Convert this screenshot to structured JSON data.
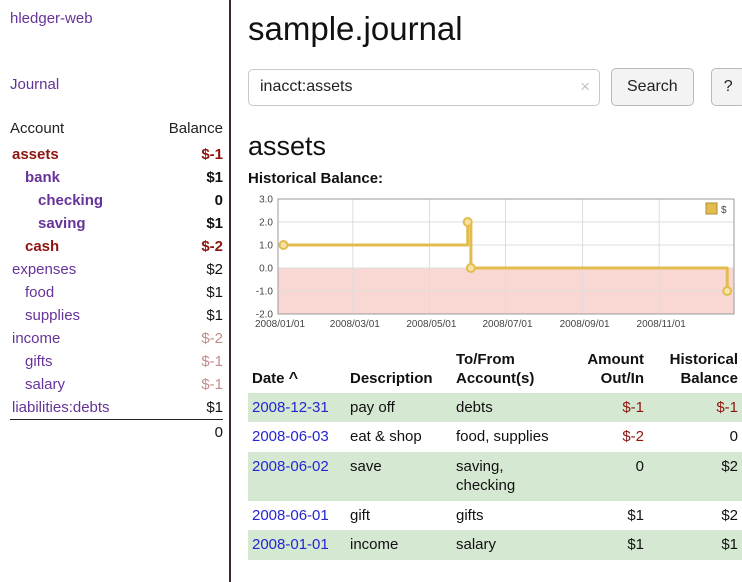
{
  "sidebar": {
    "app_title": "hledger-web",
    "journal_link": "Journal",
    "table": {
      "account_header": "Account",
      "balance_header": "Balance",
      "accounts": [
        {
          "name": "assets",
          "balance": "$-1"
        },
        {
          "name": "bank",
          "balance": "$1"
        },
        {
          "name": "checking",
          "balance": "0"
        },
        {
          "name": "saving",
          "balance": "$1"
        },
        {
          "name": "cash",
          "balance": "$-2"
        },
        {
          "name": "expenses",
          "balance": "$2"
        },
        {
          "name": "food",
          "balance": "$1"
        },
        {
          "name": "supplies",
          "balance": "$1"
        },
        {
          "name": "income",
          "balance": "$-2"
        },
        {
          "name": "gifts",
          "balance": "$-1"
        },
        {
          "name": "salary",
          "balance": "$-1"
        },
        {
          "name": "liabilities:debts",
          "balance": "$1"
        }
      ],
      "total": "0"
    }
  },
  "header": {
    "title": "sample.journal"
  },
  "search": {
    "value": "inacct:assets",
    "clear_icon": "×",
    "button_label": "Search",
    "help_label": "?"
  },
  "section": {
    "title": "assets",
    "chart_label": "Historical Balance:"
  },
  "chart_data": {
    "type": "step-line",
    "title": "Historical Balance:",
    "legend_label": "$",
    "ylim": [
      -2,
      3
    ],
    "yticks": [
      3.0,
      2.0,
      1.0,
      0.0,
      -1.0,
      -2.0
    ],
    "xticks": [
      {
        "label": "2008/01/01",
        "pos": 0.0
      },
      {
        "label": "2008/03/01",
        "pos": 0.164
      },
      {
        "label": "2008/05/01",
        "pos": 0.332
      },
      {
        "label": "2008/07/01",
        "pos": 0.499
      },
      {
        "label": "2008/09/01",
        "pos": 0.668
      },
      {
        "label": "2008/11/01",
        "pos": 0.836
      }
    ],
    "data": [
      [
        "2008-01-01",
        1
      ],
      [
        "2008-06-01",
        2
      ],
      [
        "2008-06-02",
        2
      ],
      [
        "2008-06-03",
        0
      ],
      [
        "2008-12-31",
        -1
      ]
    ],
    "points": [
      {
        "x": 0.012,
        "y": 1
      },
      {
        "x": 0.416,
        "y": 1
      },
      {
        "x": 0.416,
        "y": 2
      },
      {
        "x": 0.423,
        "y": 2
      },
      {
        "x": 0.423,
        "y": 0
      },
      {
        "x": 0.985,
        "y": 0
      },
      {
        "x": 0.985,
        "y": -1
      }
    ],
    "markers": [
      [
        0.012,
        1
      ],
      [
        0.416,
        2
      ],
      [
        0.423,
        0
      ],
      [
        0.985,
        -1
      ]
    ],
    "line_color": "#e2bc4e",
    "marker_fill": "#f6e3a4",
    "negative_region_color": "#f9d8d4",
    "grid_color": "#dddddd"
  },
  "transactions": {
    "sort_icon": "^",
    "headers": {
      "date": "Date",
      "description": "Description",
      "accounts": "To/From Account(s)",
      "amount": "Amount Out/In",
      "balance": "Historical Balance"
    },
    "rows": [
      {
        "date": "2008-12-31",
        "description": "pay off",
        "accounts": "debts",
        "amount": "$-1",
        "balance": "$-1"
      },
      {
        "date": "2008-06-03",
        "description": "eat & shop",
        "accounts": "food, supplies",
        "amount": "$-2",
        "balance": "0"
      },
      {
        "date": "2008-06-02",
        "description": "save",
        "accounts": "saving, checking",
        "amount": "0",
        "balance": "$2"
      },
      {
        "date": "2008-06-01",
        "description": "gift",
        "accounts": "gifts",
        "amount": "$1",
        "balance": "$2"
      },
      {
        "date": "2008-01-01",
        "description": "income",
        "accounts": "salary",
        "amount": "$1",
        "balance": "$1"
      }
    ]
  },
  "colors": {
    "link_purple": "#663399",
    "negative_red": "#8e150f",
    "dim_negative": "#c28c8a",
    "row_green": "#d5e8d1",
    "date_blue": "#2525d2",
    "chart_gold": "#e2bc4e"
  }
}
